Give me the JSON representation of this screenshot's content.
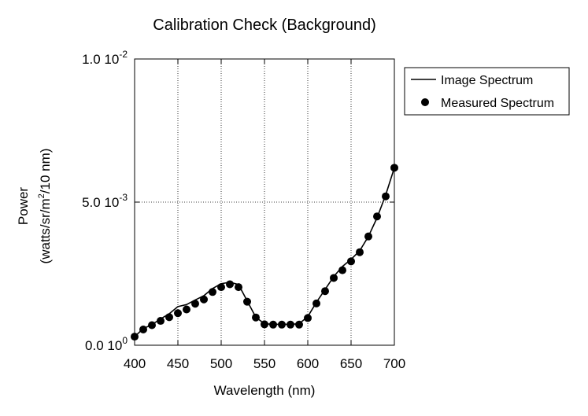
{
  "chart_data": {
    "type": "line",
    "title": "Calibration Check (Background)",
    "xlabel": "Wavelength (nm)",
    "ylabel_line1": "Power",
    "ylabel_line2_pre": "(watts/sr/m",
    "ylabel_line2_sup": "2",
    "ylabel_line2_post": "/10 nm)",
    "xlim": [
      400,
      700
    ],
    "ylim": [
      0,
      0.01
    ],
    "x_ticks": [
      {
        "value": 400,
        "label": "400"
      },
      {
        "value": 450,
        "label": "450"
      },
      {
        "value": 500,
        "label": "500"
      },
      {
        "value": 550,
        "label": "550"
      },
      {
        "value": 600,
        "label": "600"
      },
      {
        "value": 650,
        "label": "650"
      },
      {
        "value": 700,
        "label": "700"
      }
    ],
    "y_ticks": [
      {
        "value": 0,
        "mantissa": "0.0 10",
        "exp": "0"
      },
      {
        "value": 0.005,
        "mantissa": "5.0 10",
        "exp": "-3"
      },
      {
        "value": 0.01,
        "mantissa": "1.0 10",
        "exp": "-2"
      }
    ],
    "x_grid": [
      450,
      500,
      550,
      600,
      650
    ],
    "y_grid": [
      0.005
    ],
    "legend_placement": "right-outside-top",
    "series": [
      {
        "name": "Image Spectrum",
        "style": "line",
        "x": [
          400,
          410,
          420,
          430,
          440,
          450,
          460,
          470,
          480,
          490,
          500,
          510,
          520,
          530,
          540,
          550,
          560,
          570,
          580,
          590,
          600,
          610,
          620,
          630,
          640,
          650,
          660,
          670,
          680,
          690,
          700
        ],
        "y": [
          0.0003,
          0.00058,
          0.00072,
          0.00092,
          0.0011,
          0.00135,
          0.00142,
          0.00158,
          0.00173,
          0.00198,
          0.00215,
          0.0022,
          0.00212,
          0.00155,
          0.00098,
          0.00075,
          0.00073,
          0.00073,
          0.00073,
          0.00075,
          0.001,
          0.0015,
          0.00195,
          0.0024,
          0.00275,
          0.003,
          0.0033,
          0.0038,
          0.00445,
          0.00525,
          0.0062
        ]
      },
      {
        "name": "Measured Spectrum",
        "style": "markers",
        "x": [
          400,
          410,
          420,
          430,
          440,
          450,
          460,
          470,
          480,
          490,
          500,
          510,
          520,
          530,
          540,
          550,
          560,
          570,
          580,
          590,
          600,
          610,
          620,
          630,
          640,
          650,
          660,
          670,
          680,
          690,
          700
        ],
        "y": [
          0.0003,
          0.00055,
          0.0007,
          0.00085,
          0.00098,
          0.00112,
          0.00125,
          0.00145,
          0.0016,
          0.00186,
          0.00203,
          0.00213,
          0.00203,
          0.00152,
          0.00097,
          0.00073,
          0.00072,
          0.00072,
          0.00072,
          0.00072,
          0.00095,
          0.00146,
          0.00189,
          0.00235,
          0.00262,
          0.00293,
          0.00325,
          0.0038,
          0.0045,
          0.0052,
          0.0062
        ]
      }
    ],
    "colors": {
      "line": "#000000",
      "marker": "#000000",
      "grid": "#000000",
      "background": "#ffffff"
    }
  }
}
